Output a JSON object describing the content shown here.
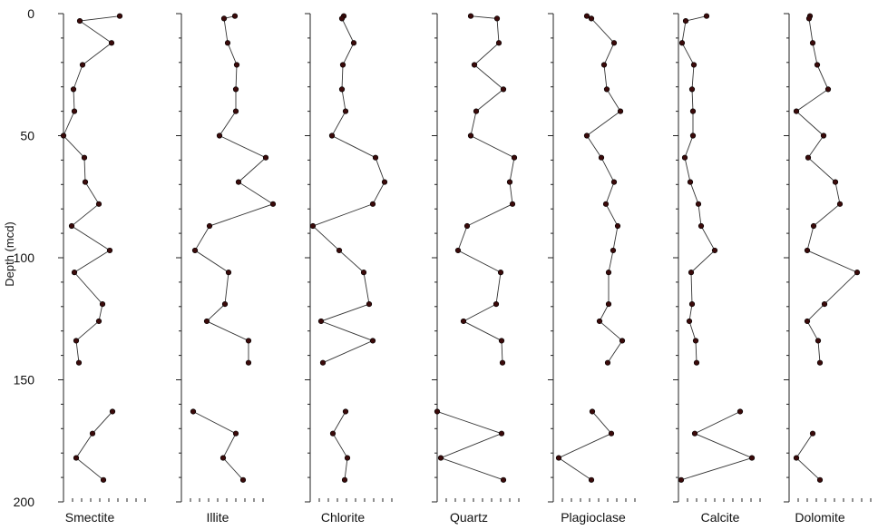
{
  "chart_data": {
    "type": "scatter",
    "ylabel": "Depth (mcd)",
    "ylim": [
      0,
      200
    ],
    "y_inverted": true,
    "yticks": [
      0,
      50,
      100,
      150,
      200
    ],
    "grid": false,
    "marker_color": "#3a0a0a",
    "line_color": "#333333",
    "panels": [
      {
        "label": "Smectite",
        "segments": [
          [
            {
              "x": 62,
              "y": 1
            },
            {
              "x": 18,
              "y": 3
            },
            {
              "x": 53,
              "y": 12
            },
            {
              "x": 21,
              "y": 21
            },
            {
              "x": 11,
              "y": 31
            },
            {
              "x": 12,
              "y": 40
            },
            {
              "x": 0,
              "y": 50
            },
            {
              "x": 23,
              "y": 59
            },
            {
              "x": 24,
              "y": 69
            },
            {
              "x": 39,
              "y": 78
            },
            {
              "x": 9,
              "y": 87
            },
            {
              "x": 51,
              "y": 97
            },
            {
              "x": 12,
              "y": 106
            },
            {
              "x": 43,
              "y": 119
            },
            {
              "x": 39,
              "y": 126
            },
            {
              "x": 14,
              "y": 134
            },
            {
              "x": 17,
              "y": 143
            }
          ],
          [
            {
              "x": 54,
              "y": 163
            },
            {
              "x": 32,
              "y": 172
            },
            {
              "x": 14,
              "y": 182
            },
            {
              "x": 44,
              "y": 191
            }
          ]
        ]
      },
      {
        "label": "Illite",
        "segments": [
          [
            {
              "x": 59,
              "y": 1
            },
            {
              "x": 47,
              "y": 2
            },
            {
              "x": 51,
              "y": 12
            },
            {
              "x": 61,
              "y": 21
            },
            {
              "x": 60,
              "y": 31
            },
            {
              "x": 60,
              "y": 40
            },
            {
              "x": 42,
              "y": 50
            },
            {
              "x": 93,
              "y": 59
            },
            {
              "x": 63,
              "y": 69
            },
            {
              "x": 101,
              "y": 78
            },
            {
              "x": 31,
              "y": 87
            },
            {
              "x": 15,
              "y": 97
            },
            {
              "x": 52,
              "y": 106
            },
            {
              "x": 48,
              "y": 119
            },
            {
              "x": 28,
              "y": 126
            },
            {
              "x": 74,
              "y": 134
            },
            {
              "x": 74,
              "y": 143
            }
          ],
          [
            {
              "x": 13,
              "y": 163
            },
            {
              "x": 60,
              "y": 172
            },
            {
              "x": 46,
              "y": 182
            },
            {
              "x": 68,
              "y": 191
            }
          ]
        ]
      },
      {
        "label": "Chlorite",
        "segments": [
          [
            {
              "x": 37,
              "y": 1
            },
            {
              "x": 35,
              "y": 2
            },
            {
              "x": 48,
              "y": 12
            },
            {
              "x": 36,
              "y": 21
            },
            {
              "x": 35,
              "y": 31
            },
            {
              "x": 39,
              "y": 40
            },
            {
              "x": 24,
              "y": 50
            },
            {
              "x": 72,
              "y": 59
            },
            {
              "x": 82,
              "y": 69
            },
            {
              "x": 69,
              "y": 78
            },
            {
              "x": 3,
              "y": 87
            },
            {
              "x": 32,
              "y": 97
            },
            {
              "x": 59,
              "y": 106
            },
            {
              "x": 65,
              "y": 119
            },
            {
              "x": 12,
              "y": 126
            },
            {
              "x": 69,
              "y": 134
            },
            {
              "x": 14,
              "y": 143
            }
          ],
          [
            {
              "x": 39,
              "y": 163
            },
            {
              "x": 25,
              "y": 172
            },
            {
              "x": 41,
              "y": 182
            },
            {
              "x": 38,
              "y": 191
            }
          ]
        ]
      },
      {
        "label": "Quartz",
        "segments": [
          [
            {
              "x": 37,
              "y": 1
            },
            {
              "x": 66,
              "y": 2
            },
            {
              "x": 68,
              "y": 12
            },
            {
              "x": 41,
              "y": 21
            },
            {
              "x": 73,
              "y": 31
            },
            {
              "x": 43,
              "y": 40
            },
            {
              "x": 37,
              "y": 50
            },
            {
              "x": 85,
              "y": 59
            },
            {
              "x": 80,
              "y": 69
            },
            {
              "x": 83,
              "y": 78
            },
            {
              "x": 33,
              "y": 87
            },
            {
              "x": 23,
              "y": 97
            },
            {
              "x": 70,
              "y": 106
            },
            {
              "x": 65,
              "y": 119
            },
            {
              "x": 29,
              "y": 126
            },
            {
              "x": 71,
              "y": 134
            },
            {
              "x": 72,
              "y": 143
            }
          ],
          [
            {
              "x": 0,
              "y": 163
            },
            {
              "x": 71,
              "y": 172
            },
            {
              "x": 4,
              "y": 182
            },
            {
              "x": 73,
              "y": 191
            }
          ]
        ]
      },
      {
        "label": "Plagioclase",
        "segments": [
          [
            {
              "x": 37,
              "y": 1
            },
            {
              "x": 42,
              "y": 2
            },
            {
              "x": 67,
              "y": 12
            },
            {
              "x": 56,
              "y": 21
            },
            {
              "x": 59,
              "y": 31
            },
            {
              "x": 74,
              "y": 40
            },
            {
              "x": 37,
              "y": 50
            },
            {
              "x": 53,
              "y": 59
            },
            {
              "x": 67,
              "y": 69
            },
            {
              "x": 58,
              "y": 78
            },
            {
              "x": 71,
              "y": 87
            },
            {
              "x": 66,
              "y": 97
            },
            {
              "x": 61,
              "y": 106
            },
            {
              "x": 61,
              "y": 119
            },
            {
              "x": 51,
              "y": 126
            },
            {
              "x": 76,
              "y": 134
            },
            {
              "x": 60,
              "y": 143
            }
          ],
          [
            {
              "x": 43,
              "y": 163
            },
            {
              "x": 64,
              "y": 172
            },
            {
              "x": 6,
              "y": 182
            },
            {
              "x": 42,
              "y": 191
            }
          ]
        ]
      },
      {
        "label": "Calcite",
        "segments": [
          [
            {
              "x": 31,
              "y": 1
            },
            {
              "x": 8,
              "y": 3
            },
            {
              "x": 4,
              "y": 12
            },
            {
              "x": 17,
              "y": 21
            },
            {
              "x": 15,
              "y": 31
            },
            {
              "x": 16,
              "y": 40
            },
            {
              "x": 16,
              "y": 50
            },
            {
              "x": 7,
              "y": 59
            },
            {
              "x": 13,
              "y": 69
            },
            {
              "x": 22,
              "y": 78
            },
            {
              "x": 25,
              "y": 87
            },
            {
              "x": 40,
              "y": 97
            },
            {
              "x": 14,
              "y": 106
            },
            {
              "x": 15,
              "y": 119
            },
            {
              "x": 12,
              "y": 126
            },
            {
              "x": 19,
              "y": 134
            },
            {
              "x": 20,
              "y": 143
            }
          ],
          [
            {
              "x": 68,
              "y": 163
            },
            {
              "x": 18,
              "y": 172
            },
            {
              "x": 81,
              "y": 182
            },
            {
              "x": 3,
              "y": 191
            }
          ]
        ]
      },
      {
        "label": "Dolomite",
        "segments": [
          [
            {
              "x": 23,
              "y": 1
            },
            {
              "x": 22,
              "y": 2
            },
            {
              "x": 26,
              "y": 12
            },
            {
              "x": 31,
              "y": 21
            },
            {
              "x": 43,
              "y": 31
            },
            {
              "x": 8,
              "y": 40
            },
            {
              "x": 38,
              "y": 50
            },
            {
              "x": 21,
              "y": 59
            },
            {
              "x": 51,
              "y": 69
            },
            {
              "x": 56,
              "y": 78
            },
            {
              "x": 27,
              "y": 87
            },
            {
              "x": 20,
              "y": 97
            },
            {
              "x": 75,
              "y": 106
            },
            {
              "x": 39,
              "y": 119
            },
            {
              "x": 20,
              "y": 126
            },
            {
              "x": 32,
              "y": 134
            },
            {
              "x": 34,
              "y": 143
            }
          ],
          [
            {
              "x": 26,
              "y": 172
            },
            {
              "x": 8,
              "y": 182
            },
            {
              "x": 34,
              "y": 191
            }
          ]
        ]
      }
    ]
  }
}
